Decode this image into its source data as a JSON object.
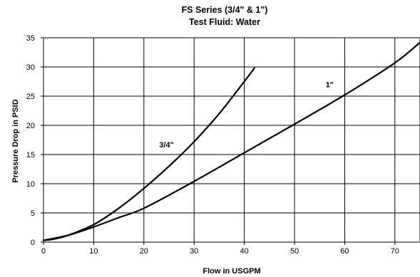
{
  "chart_data": {
    "type": "line",
    "title": "FS Series (3/4\" & 1\")",
    "subtitle": "Test Fluid: Water",
    "xlabel": "Flow in USGPM",
    "ylabel": "Pressure Drop in PSID",
    "xlim": [
      0,
      75
    ],
    "ylim": [
      0,
      35
    ],
    "xticks": [
      "0",
      "10",
      "20",
      "30",
      "40",
      "50",
      "60",
      "70"
    ],
    "yticks": [
      "0",
      "5",
      "10",
      "15",
      "20",
      "25",
      "30",
      "35"
    ],
    "grid": true,
    "series": [
      {
        "name": "3/4\"",
        "x": [
          0,
          2,
          5,
          10,
          15,
          20,
          25,
          30,
          35,
          40,
          42
        ],
        "y": [
          0.3,
          0.5,
          1.2,
          3.0,
          5.8,
          9.2,
          13.0,
          17.2,
          22.0,
          27.5,
          29.8
        ]
      },
      {
        "name": "1\"",
        "x": [
          0,
          5,
          10,
          15,
          20,
          30,
          40,
          50,
          60,
          70,
          75
        ],
        "y": [
          0.3,
          1.2,
          2.6,
          4.2,
          5.8,
          10.4,
          15.3,
          20.2,
          25.2,
          30.7,
          34.2
        ]
      }
    ]
  }
}
